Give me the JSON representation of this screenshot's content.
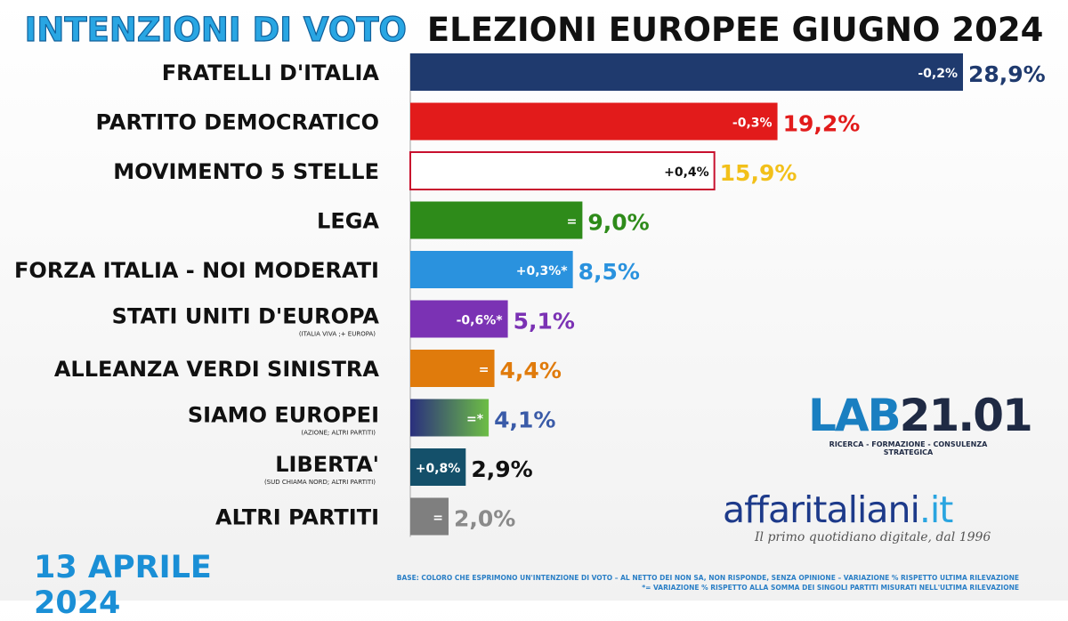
{
  "title": {
    "part1": "INTENZIONI DI VOTO",
    "part2": "ELEZIONI EUROPEE GIUGNO 2024"
  },
  "date": "13 APRILE 2024",
  "brand": {
    "lab_part1": "LAB",
    "lab_part2": "21.01",
    "lab_tagline": "RICERCA - FORMAZIONE - CONSULENZA STRATEGICA",
    "aff_part1": "affaritaliani",
    "aff_part2": ".it",
    "aff_tagline": "Il primo quotidiano digitale, dal 1996"
  },
  "footnotes": {
    "line1": "BASE: COLORO CHE ESPRIMONO UN'INTENZIONE DI VOTO – AL NETTO DEI NON SA, NON RISPONDE, SENZA OPINIONE – VARIAZIONE % RISPETTO ULTIMA RILEVAZIONE",
    "line2": "*= VARIAZIONE % RISPETTO ALLA SOMMA DEI SINGOLI PARTITI MISURATI NELL'ULTIMA RILEVAZIONE"
  },
  "chart_data": {
    "type": "bar",
    "orientation": "horizontal",
    "title": "INTENZIONI DI VOTO ELEZIONI EUROPEE GIUGNO 2024",
    "categories": [
      "FRATELLI D'ITALIA",
      "PARTITO DEMOCRATICO",
      "MOVIMENTO 5 STELLE",
      "LEGA",
      "FORZA ITALIA - NOI MODERATI",
      "STATI UNITI D'EUROPA",
      "ALLEANZA VERDI SINISTRA",
      "SIAMO EUROPEI",
      "LIBERTA'",
      "ALTRI PARTITI"
    ],
    "sublabels": [
      "",
      "",
      "",
      "",
      "",
      "(ITALIA VIVA ;+ EUROPA)",
      "",
      "(AZIONE; ALTRI PARTITI)",
      "(SUD CHIAMA NORD; ALTRI PARTITI)",
      ""
    ],
    "values": [
      28.9,
      19.2,
      15.9,
      9.0,
      8.5,
      5.1,
      4.4,
      4.1,
      2.9,
      2.0
    ],
    "value_labels": [
      "28,9%",
      "19,2%",
      "15,9%",
      "9,0%",
      "8,5%",
      "5,1%",
      "4,4%",
      "4,1%",
      "2,9%",
      "2,0%"
    ],
    "changes": [
      "-0,2%",
      "-0,3%",
      "+0,4%",
      "=",
      "+0,3%*",
      "-0,6%*",
      "=",
      "=*",
      "+0,8%",
      "="
    ],
    "colors": [
      "#1f3a6e",
      "#e21b1b",
      "#ffffff",
      "#2e8b1a",
      "#2a92de",
      "#7b32b4",
      "#e07b0c",
      "#5fa23a",
      "#14506a",
      "#7f7f7f"
    ],
    "value_colors": [
      "#1f3a6e",
      "#e21b1b",
      "#f2c01a",
      "#2e8b1a",
      "#2a92de",
      "#7b32b4",
      "#e07b0c",
      "#3a5ba8",
      "#111111",
      "#8a8a8a"
    ],
    "gradient_bar_index": 7,
    "gradient_colors": [
      "#2a2f7e",
      "#6dbe45"
    ],
    "outline_bar_index": 2,
    "outline_color": "#c8102e",
    "xlim": [
      0,
      30
    ]
  }
}
